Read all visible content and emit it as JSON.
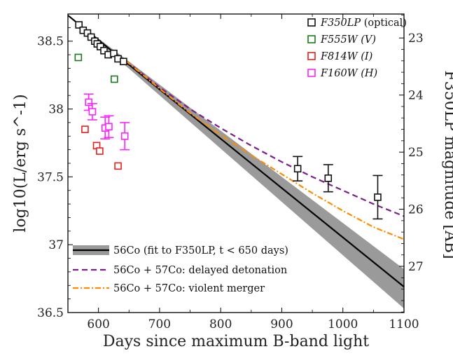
{
  "chart_data": {
    "type": "line",
    "xlabel": "Days since maximum B-band light",
    "ylabel_left": "log10(L/erg s^-1)",
    "ylabel_right": "F350LP magnitude [AB]",
    "xlim": [
      550,
      1100
    ],
    "ylim": [
      36.5,
      38.7
    ],
    "right_mag_lim": [
      22.58,
      27.81
    ],
    "xticks": [
      "600",
      "700",
      "800",
      "900",
      "1000",
      "1100"
    ],
    "yticks": [
      "36.5",
      "37",
      "37.5",
      "38",
      "38.5"
    ],
    "right_ticks": [
      "23",
      "24",
      "25",
      "26",
      "27"
    ],
    "grid": false,
    "series": [
      {
        "name": "F350LP (optical)",
        "color": "#111111",
        "marker": "open-square",
        "x": [
          568,
          575,
          582,
          588,
          594,
          598,
          603,
          609,
          616,
          625,
          632,
          641,
          926,
          976,
          1057
        ],
        "y": [
          38.62,
          38.58,
          38.56,
          38.53,
          38.5,
          38.48,
          38.46,
          38.43,
          38.4,
          38.41,
          38.37,
          38.35,
          37.56,
          37.49,
          37.35
        ],
        "yerr": [
          0,
          0,
          0,
          0,
          0,
          0,
          0,
          0,
          0,
          0,
          0,
          0,
          0.09,
          0.1,
          0.16
        ]
      },
      {
        "name": "F555W (V)",
        "color": "#1a7a1a",
        "marker": "open-square",
        "x": [
          567,
          626
        ],
        "y": [
          38.38,
          38.22
        ],
        "yerr": [
          0,
          0
        ]
      },
      {
        "name": "F814W (I)",
        "color": "#e8201c",
        "marker": "open-square",
        "x": [
          578,
          597,
          602,
          632
        ],
        "y": [
          37.85,
          37.73,
          37.69,
          37.58
        ],
        "yerr": [
          0,
          0,
          0,
          0
        ]
      },
      {
        "name": "F160W (H)",
        "color": "#ff22ff",
        "marker": "open-square",
        "x": [
          584,
          590,
          611,
          617,
          643
        ],
        "y": [
          38.05,
          37.98,
          37.86,
          37.87,
          37.8
        ],
        "yerr": [
          0.06,
          0.06,
          0.08,
          0.08,
          0.1
        ]
      },
      {
        "name": "56Co (fit to F350LP, t < 650 days)",
        "color": "#000000",
        "style": "solid",
        "x": [
          550,
          1100
        ],
        "y": [
          38.69,
          36.69
        ],
        "band_lower": [
          38.69,
          36.53
        ],
        "band_upper": [
          38.69,
          36.82
        ]
      },
      {
        "name": "56Co + 57Co: delayed detonation",
        "color": "#7b1f8a",
        "style": "dashed",
        "x": [
          645,
          700,
          750,
          800,
          850,
          900,
          950,
          1000,
          1050,
          1100
        ],
        "y": [
          38.355,
          38.16,
          38.0,
          37.86,
          37.73,
          37.61,
          37.5,
          37.4,
          37.3,
          37.21
        ]
      },
      {
        "name": "56Co + 57Co: violent merger",
        "color": "#ff8c00",
        "style": "dash-dot",
        "x": [
          645,
          700,
          750,
          800,
          850,
          900,
          950,
          1000,
          1050,
          1100
        ],
        "y": [
          38.355,
          38.15,
          37.97,
          37.81,
          37.66,
          37.52,
          37.38,
          37.25,
          37.13,
          37.04
        ]
      }
    ],
    "legend_top": {
      "placement": "top-right",
      "entries": [
        {
          "label": "F350LP",
          "suffix": " (optical)",
          "color": "#111111"
        },
        {
          "label": "F555W",
          "suffix": " (V)",
          "color": "#1a7a1a"
        },
        {
          "label": "F814W",
          "suffix": " (I)",
          "color": "#e8201c"
        },
        {
          "label": "F160W",
          "suffix": " (H)",
          "color": "#ff22ff"
        }
      ]
    },
    "legend_bottom": {
      "placement": "bottom-left",
      "entries": [
        {
          "label": "56Co (fit to F350LP, t < 650 days)"
        },
        {
          "label": "56Co + 57Co: delayed detonation"
        },
        {
          "label": "56Co + 57Co: violent merger"
        }
      ]
    }
  }
}
